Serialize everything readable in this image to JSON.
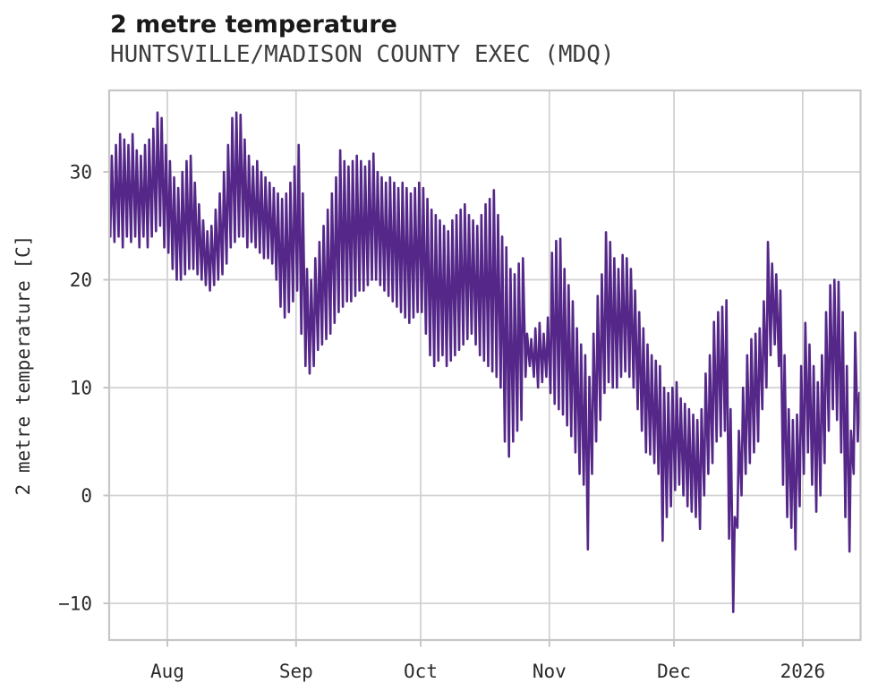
{
  "chart_data": {
    "type": "line",
    "title": "2 metre temperature",
    "subtitle": "HUNTSVILLE/MADISON COUNTY EXEC (MDQ)",
    "ylabel": "2 metre temperature [C]",
    "xlabel": "",
    "x_tick_labels": [
      "Aug",
      "Sep",
      "Oct",
      "Nov",
      "Dec",
      "2026"
    ],
    "x_tick_day_index": [
      14,
      45,
      75,
      106,
      136,
      167
    ],
    "y_ticks": [
      30,
      20,
      10,
      0,
      -10
    ],
    "ylim": [
      -13.5,
      37.6
    ],
    "grid": true,
    "legend": "none",
    "line_color": "#542788",
    "grid_color": "#d2d2d2",
    "spine_color": "#c6c6c6",
    "series": [
      {
        "name": "2 metre temperature",
        "unit": "C",
        "x_start_date": "2025-07-18",
        "x_end_date": "2026-01-14",
        "cadence": "hourly signal summarized as daily min/max envelope",
        "daily_min": [
          24,
          23.5,
          24,
          23,
          24,
          23.5,
          24,
          23,
          24,
          23,
          24,
          24.5,
          25,
          23,
          22.5,
          21,
          20,
          20,
          20.5,
          21,
          21,
          20.5,
          20,
          19.5,
          19,
          19.5,
          20,
          20.5,
          21.5,
          23,
          23.5,
          24,
          24,
          23,
          23.5,
          23,
          22.5,
          22,
          22,
          21.5,
          20,
          17.5,
          16.5,
          17,
          18,
          19,
          15,
          12,
          11.3,
          12,
          13.5,
          14,
          14.5,
          15,
          16,
          17,
          17.5,
          18,
          18,
          18.5,
          19,
          19,
          19.5,
          20,
          20,
          19.5,
          19,
          18.5,
          18,
          17.5,
          17,
          16.5,
          16,
          16.5,
          17,
          17,
          15,
          13,
          12,
          12.5,
          13,
          12,
          12.5,
          13,
          13.5,
          14,
          14.5,
          15,
          14,
          13,
          12.5,
          12,
          11.5,
          11,
          10,
          5,
          3.6,
          5,
          6,
          7,
          11,
          12,
          11,
          10,
          10.5,
          11,
          9.5,
          8.5,
          8,
          7.5,
          6.5,
          5.5,
          4,
          2,
          1,
          -5,
          2,
          5,
          7,
          9.5,
          10.5,
          10,
          10,
          11,
          11.5,
          11,
          10,
          8,
          6,
          4,
          3.8,
          3,
          2,
          -4.2,
          -2,
          -1,
          0.5,
          1,
          0,
          -1,
          -1.5,
          -2,
          -3.1,
          0,
          2,
          3,
          5,
          5.5,
          6,
          -4,
          -10.8,
          -3,
          0,
          2,
          3,
          4,
          5,
          8,
          10,
          13,
          14,
          12,
          1,
          -2,
          -3,
          -5,
          -1,
          2,
          4,
          1,
          -1.5,
          0,
          3,
          6,
          8,
          7,
          4,
          -2,
          -5.2,
          2,
          5
        ],
        "daily_max": [
          31.5,
          32.5,
          33.5,
          33,
          32.5,
          33.5,
          32,
          31.5,
          32.5,
          33,
          34,
          35.5,
          35,
          32.5,
          31,
          29.5,
          28.5,
          30,
          31,
          31.5,
          29,
          27,
          25.5,
          24.5,
          25,
          26.5,
          28,
          30,
          32.5,
          35,
          35.5,
          35.3,
          33,
          31.5,
          30.5,
          31,
          30,
          29.5,
          29,
          28.5,
          28,
          27.5,
          28,
          29,
          30.5,
          32.5,
          28,
          21,
          20,
          22,
          23.5,
          25,
          26.5,
          28,
          29.5,
          32,
          31,
          30.5,
          31,
          31.5,
          31,
          30.5,
          31,
          31.7,
          30,
          29.5,
          29,
          29.5,
          29,
          28.5,
          29,
          28.5,
          28,
          28.5,
          29,
          28.5,
          27.5,
          26.5,
          26,
          25.5,
          25,
          24.5,
          25.5,
          26,
          26.5,
          27,
          26,
          25.5,
          25,
          26,
          27,
          27.5,
          28.3,
          26,
          24,
          23,
          21,
          20.5,
          21.5,
          22,
          15,
          14.5,
          15.5,
          16,
          15,
          16.5,
          22.5,
          23.6,
          23.8,
          21,
          19.5,
          18,
          15.5,
          14,
          13,
          11,
          15,
          18.5,
          20.5,
          24.4,
          23.5,
          22,
          21,
          22.3,
          22,
          21,
          19,
          17,
          15.5,
          14,
          13,
          12.5,
          12,
          10,
          9.5,
          10,
          10.5,
          9,
          8.5,
          8,
          7.5,
          7,
          8,
          11.3,
          13,
          16.1,
          17,
          17.5,
          18.1,
          8,
          -2,
          6,
          10,
          13,
          14.5,
          15,
          15.5,
          18,
          23.5,
          21.5,
          20.5,
          19,
          13,
          8,
          7,
          7.5,
          12,
          16,
          14,
          12,
          10.5,
          13,
          17,
          19.5,
          20,
          19.8,
          17,
          12,
          6,
          15.1,
          9.5
        ]
      }
    ]
  }
}
